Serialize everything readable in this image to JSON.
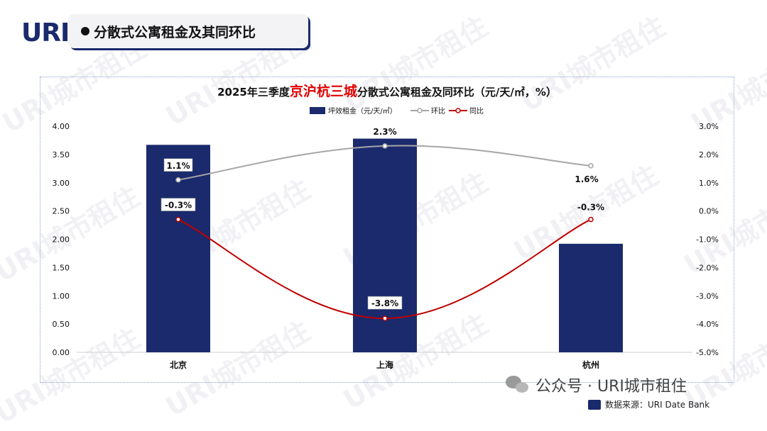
{
  "header": {
    "logo_text": "URI",
    "section_title": "分散式公寓租金及其同环比"
  },
  "watermark_text": "URI城市租住",
  "chart_data": {
    "type": "bar",
    "title_prefix": "2025年三季度",
    "title_highlight": "京沪杭三城",
    "title_suffix": "分散式公寓租金及同环比（元/天/㎡，%）",
    "categories": [
      "北京",
      "上海",
      "杭州"
    ],
    "series": [
      {
        "name": "坪效租金（元/天/㎡）",
        "kind": "bar",
        "axis": "left",
        "color": "#1a2a6c",
        "values": [
          3.67,
          3.78,
          1.92
        ]
      },
      {
        "name": "环比",
        "kind": "line",
        "axis": "right",
        "color": "#a6a6a6",
        "values": [
          1.1,
          2.3,
          1.6
        ],
        "labels": [
          "1.1%",
          "2.3%",
          "1.6%"
        ]
      },
      {
        "name": "同比",
        "kind": "line",
        "axis": "right",
        "color": "#c00000",
        "values": [
          -0.3,
          -3.8,
          -0.3
        ],
        "labels": [
          "-0.3%",
          "-3.8%",
          "-0.3%"
        ]
      }
    ],
    "left_axis": {
      "ylim": [
        0,
        4
      ],
      "ticks": [
        "0.00",
        "0.50",
        "1.00",
        "1.50",
        "2.00",
        "2.50",
        "3.00",
        "3.50",
        "4.00"
      ]
    },
    "right_axis": {
      "ylim": [
        -5,
        3
      ],
      "ticks": [
        "-5.0%",
        "-4.0%",
        "-3.0%",
        "-2.0%",
        "-1.0%",
        "0.0%",
        "1.0%",
        "2.0%",
        "3.0%"
      ]
    },
    "legend_position": "top-center",
    "grid": false
  },
  "footer": {
    "brand": "公众号 · URI城市租住",
    "source": "数据来源：URI Date Bank"
  }
}
